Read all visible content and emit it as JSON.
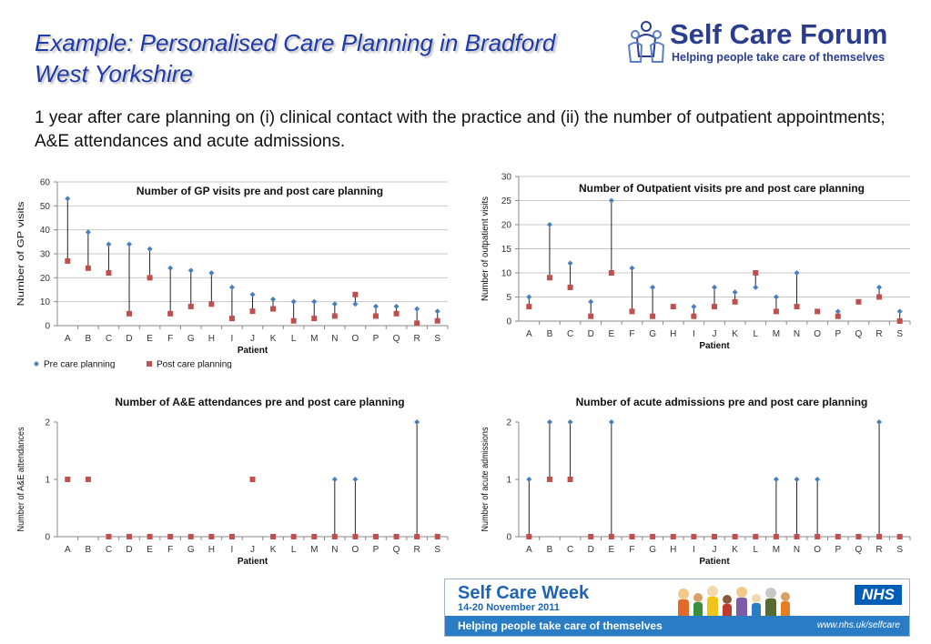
{
  "slide": {
    "title": "Example: Personalised Care Planning in Bradford West Yorkshire",
    "subtitle": "1 year after care planning on (i) clinical contact with the practice and (ii) the number of outpatient appointments; A&E attendances and acute admissions."
  },
  "logo": {
    "name": "Self Care Forum",
    "tagline": "Helping people take care of themselves",
    "icon": "people-figures-icon",
    "color": "#2b3d8f"
  },
  "banner": {
    "title": "Self Care Week",
    "dates": "14-20 November 2011",
    "tagline": "Helping people take care of themselves",
    "url": "www.nhs.uk/selfcare",
    "badge": "NHS",
    "illustration": "cartoon-people-group"
  },
  "colors": {
    "pre": "#4a7ebb",
    "post": "#c0504d",
    "title": "#1f3aa6",
    "gridline": "#c8c8c8"
  },
  "chart_data": [
    {
      "type": "scatter",
      "title": "Number of GP visits pre and post care planning",
      "xlabel": "Patient",
      "ylabel": "Number of GP visits",
      "ylim": [
        0,
        60
      ],
      "yticks": [
        0,
        10,
        20,
        30,
        40,
        50,
        60
      ],
      "grid": true,
      "legend": "bottom-left",
      "categories": [
        "A",
        "B",
        "C",
        "D",
        "E",
        "F",
        "G",
        "H",
        "I",
        "J",
        "K",
        "L",
        "M",
        "N",
        "O",
        "P",
        "Q",
        "R",
        "S"
      ],
      "series": [
        {
          "name": "Pre care planning",
          "marker": "diamond",
          "values": [
            53,
            39,
            34,
            34,
            32,
            24,
            23,
            22,
            16,
            13,
            11,
            10,
            10,
            9,
            9,
            8,
            8,
            7,
            6
          ]
        },
        {
          "name": "Post care planning",
          "marker": "square",
          "values": [
            27,
            24,
            22,
            5,
            20,
            5,
            8,
            9,
            3,
            6,
            7,
            2,
            3,
            4,
            13,
            4,
            5,
            1,
            2
          ]
        }
      ]
    },
    {
      "type": "scatter",
      "title": "Number of Outpatient visits pre and post care planning",
      "xlabel": "Patient",
      "ylabel": "Number of outpatient visits",
      "ylim": [
        0,
        30
      ],
      "yticks": [
        0,
        5,
        10,
        15,
        20,
        25,
        30
      ],
      "grid": true,
      "categories": [
        "A",
        "B",
        "C",
        "D",
        "E",
        "F",
        "G",
        "H",
        "I",
        "J",
        "K",
        "L",
        "M",
        "N",
        "O",
        "P",
        "Q",
        "R",
        "S"
      ],
      "series": [
        {
          "name": "Pre care planning",
          "marker": "diamond",
          "values": [
            5,
            20,
            12,
            4,
            25,
            11,
            7,
            3,
            3,
            7,
            6,
            7,
            5,
            10,
            2,
            2,
            4,
            7,
            2
          ]
        },
        {
          "name": "Post care planning",
          "marker": "square",
          "values": [
            3,
            9,
            7,
            1,
            10,
            2,
            1,
            3,
            1,
            3,
            4,
            10,
            2,
            3,
            2,
            1,
            4,
            5,
            0
          ]
        }
      ]
    },
    {
      "type": "scatter",
      "title": "Number of A&E attendances pre and post care planning",
      "xlabel": "Patient",
      "ylabel": "Number of A&E attendances",
      "ylim": [
        0,
        2
      ],
      "yticks": [
        0,
        1,
        2
      ],
      "grid": false,
      "categories": [
        "A",
        "B",
        "C",
        "D",
        "E",
        "F",
        "G",
        "H",
        "I",
        "J",
        "K",
        "L",
        "M",
        "N",
        "O",
        "P",
        "Q",
        "R",
        "S"
      ],
      "series": [
        {
          "name": "Pre care planning",
          "marker": "diamond",
          "values": [
            1,
            1,
            0,
            0,
            0,
            0,
            0,
            0,
            0,
            1,
            0,
            0,
            0,
            1,
            1,
            0,
            0,
            2,
            0
          ]
        },
        {
          "name": "Post care planning",
          "marker": "square",
          "values": [
            1,
            1,
            0,
            0,
            0,
            0,
            0,
            0,
            0,
            1,
            0,
            0,
            0,
            0,
            0,
            0,
            0,
            0,
            0
          ]
        }
      ]
    },
    {
      "type": "scatter",
      "title": "Number of acute admissions pre and post care planning",
      "xlabel": "Patient",
      "ylabel": "Number of acute admissions",
      "ylim": [
        0,
        2
      ],
      "yticks": [
        0,
        1,
        2
      ],
      "grid": false,
      "categories": [
        "A",
        "B",
        "C",
        "D",
        "E",
        "F",
        "G",
        "H",
        "I",
        "J",
        "K",
        "L",
        "M",
        "N",
        "O",
        "P",
        "Q",
        "R",
        "S"
      ],
      "series": [
        {
          "name": "Pre care planning",
          "marker": "diamond",
          "values": [
            1,
            2,
            2,
            0,
            2,
            0,
            0,
            0,
            0,
            0,
            0,
            0,
            1,
            1,
            1,
            0,
            0,
            2,
            0
          ]
        },
        {
          "name": "Post care planning",
          "marker": "square",
          "values": [
            0,
            1,
            1,
            0,
            0,
            0,
            0,
            0,
            0,
            0,
            0,
            0,
            0,
            0,
            0,
            0,
            0,
            0,
            0
          ]
        }
      ]
    }
  ]
}
